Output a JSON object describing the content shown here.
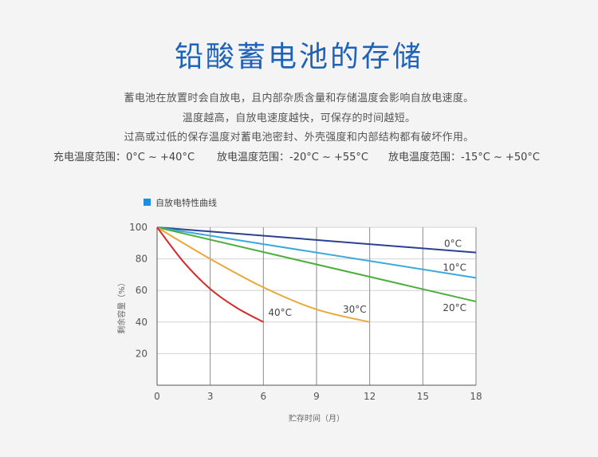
{
  "page": {
    "title": "铅酸蓄电池的存储",
    "paragraphs": [
      "蓄电池在放置时会自放电，且内部杂质含量和存储温度会影响自放电速度。",
      "温度越高，自放电速度越快，可保存的时间越短。",
      "过高或过低的保存温度对蓄电池密封、外壳强度和内部结构都有破坏作用。"
    ],
    "ranges": [
      "充电温度范围：0°C ~ +40°C",
      "放电温度范围：-20°C ~ +55°C",
      "放电温度范围：-15°C ~ +50°C"
    ]
  },
  "chart_data": {
    "type": "line",
    "legend": {
      "label": "自放电特性曲线",
      "color": "#1a8fe3",
      "position": "top-left"
    },
    "xlabel": "贮存时间（月）",
    "ylabel": "剩余容量（%）",
    "xlim": [
      0,
      18
    ],
    "ylim": [
      0,
      100
    ],
    "xticks": [
      0,
      3,
      6,
      9,
      12,
      15,
      18
    ],
    "yticks": [
      20,
      40,
      60,
      80,
      100
    ],
    "grid": true,
    "series": [
      {
        "name": "0°C",
        "color": "#2b3f93",
        "x": [
          0,
          18
        ],
        "y": [
          100,
          84
        ]
      },
      {
        "name": "10°C",
        "color": "#3aa9dc",
        "x": [
          0,
          18
        ],
        "y": [
          100,
          68
        ]
      },
      {
        "name": "20°C",
        "color": "#4cae3c",
        "x": [
          0,
          18
        ],
        "y": [
          100,
          53
        ]
      },
      {
        "name": "30°C",
        "color": "#e8a93a",
        "x": [
          0,
          3,
          6,
          9,
          12
        ],
        "y": [
          100,
          80,
          62,
          48,
          40
        ]
      },
      {
        "name": "40°C",
        "color": "#d42b2b",
        "x": [
          0,
          1.5,
          3,
          4.5,
          6
        ],
        "y": [
          100,
          78,
          61,
          49,
          40
        ]
      }
    ]
  }
}
